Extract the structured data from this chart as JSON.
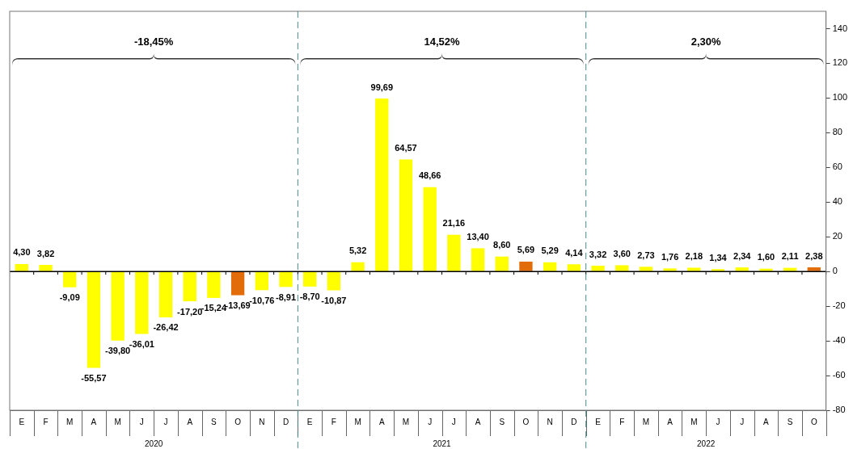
{
  "chart_data": {
    "type": "bar",
    "categories": [
      "E",
      "F",
      "M",
      "A",
      "M",
      "J",
      "J",
      "A",
      "S",
      "O",
      "N",
      "D",
      "E",
      "F",
      "M",
      "A",
      "M",
      "J",
      "J",
      "A",
      "S",
      "O",
      "N",
      "D",
      "E",
      "F",
      "M",
      "A",
      "M",
      "J",
      "J",
      "A",
      "S",
      "O"
    ],
    "values": [
      4.3,
      3.82,
      -9.09,
      -55.57,
      -39.8,
      -36.01,
      -26.42,
      -17.2,
      -15.24,
      -13.69,
      -10.76,
      -8.91,
      -8.7,
      -10.87,
      5.32,
      99.69,
      64.57,
      48.66,
      21.16,
      13.4,
      8.6,
      5.69,
      5.29,
      4.14,
      3.32,
      3.6,
      2.73,
      1.76,
      2.18,
      1.34,
      2.34,
      1.6,
      2.11,
      2.38
    ],
    "colors": [
      "#ffff00",
      "#ffff00",
      "#ffff00",
      "#ffff00",
      "#ffff00",
      "#ffff00",
      "#ffff00",
      "#ffff00",
      "#ffff00",
      "#e36c0a",
      "#ffff00",
      "#ffff00",
      "#ffff00",
      "#ffff00",
      "#ffff00",
      "#ffff00",
      "#ffff00",
      "#ffff00",
      "#ffff00",
      "#ffff00",
      "#ffff00",
      "#e36c0a",
      "#ffff00",
      "#ffff00",
      "#ffff00",
      "#ffff00",
      "#ffff00",
      "#ffff00",
      "#ffff00",
      "#ffff00",
      "#ffff00",
      "#ffff00",
      "#ffff00",
      "#e36c0a"
    ],
    "value_labels": [
      "4,30",
      "3,82",
      "-9,09",
      "-55,57",
      "-39,80",
      "-36,01",
      "-26,42",
      "-17,20",
      "-15,24",
      "-13,69",
      "-10,76",
      "-8,91",
      "-8,70",
      "-10,87",
      "5,32",
      "99,69",
      "64,57",
      "48,66",
      "21,16",
      "13,40",
      "8,60",
      "5,69",
      "5,29",
      "4,14",
      "3,32",
      "3,60",
      "2,73",
      "1,76",
      "2,18",
      "1,34",
      "2,34",
      "1,60",
      "2,11",
      "2,38"
    ],
    "ylim": [
      -80,
      150
    ],
    "yticks": [
      -80,
      -60,
      -40,
      -20,
      0,
      20,
      40,
      60,
      80,
      100,
      120,
      140
    ],
    "annotations": [
      "-18,45%",
      "14,52%",
      "2,30%",
      "2020",
      "2021",
      "2022"
    ],
    "grid": false,
    "legend": false
  }
}
